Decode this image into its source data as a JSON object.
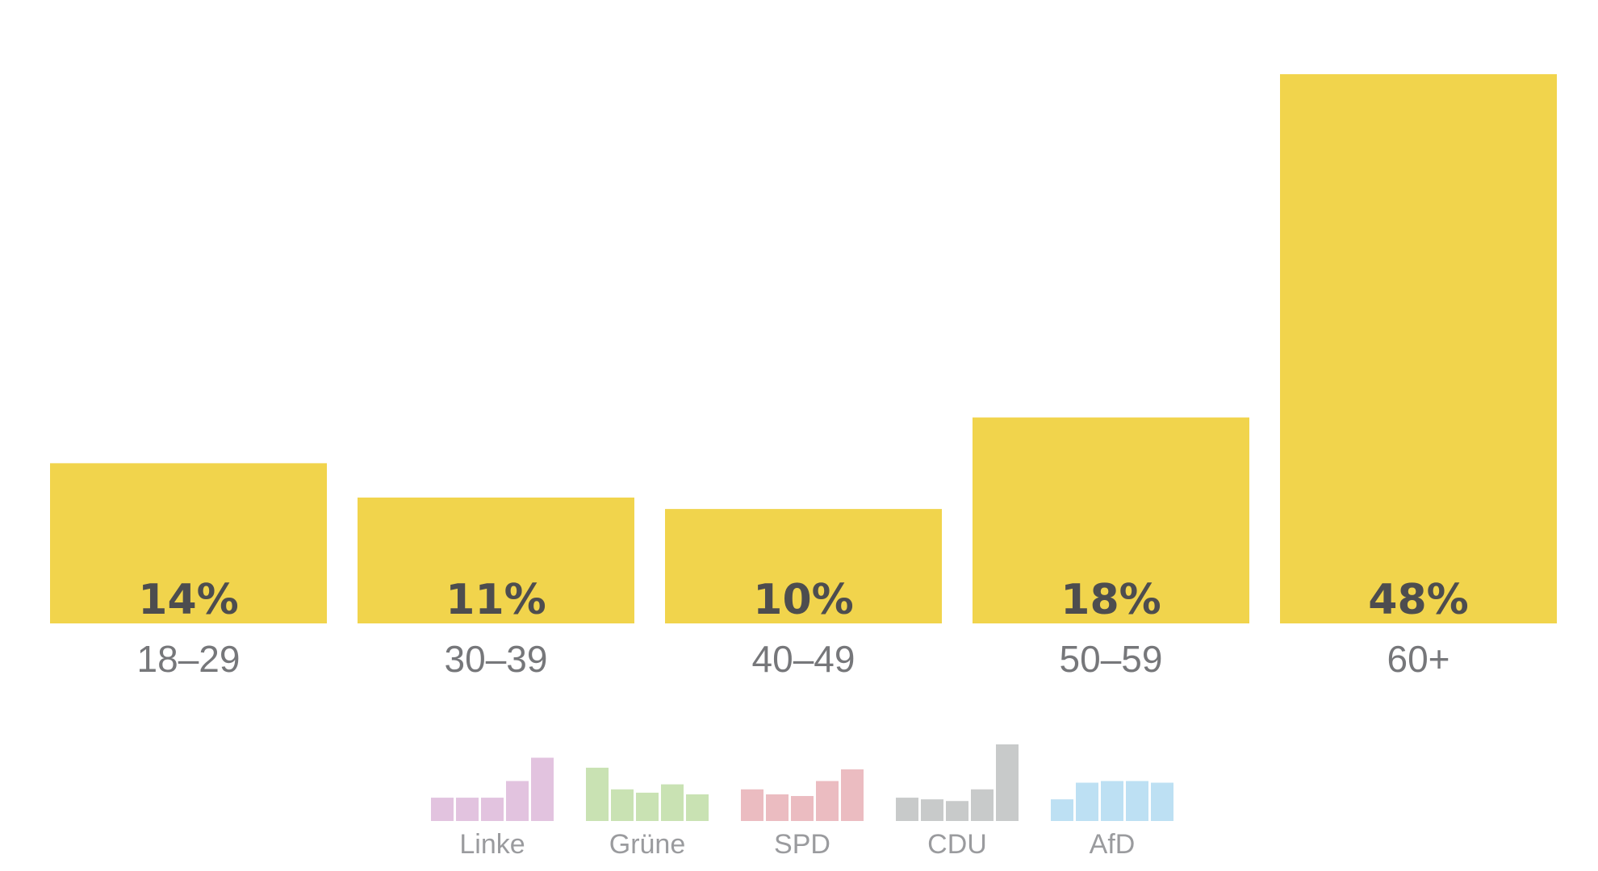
{
  "chart_data": {
    "type": "bar",
    "categories": [
      "18–29",
      "30–39",
      "40–49",
      "50–59",
      "60+"
    ],
    "values": [
      14,
      11,
      10,
      18,
      48
    ],
    "value_labels": [
      "14%",
      "11%",
      "10%",
      "18%",
      "48%"
    ],
    "ylim": [
      0,
      48
    ],
    "grid": false,
    "bar_color": "#f1d44c",
    "legend": [
      {
        "name": "Linke",
        "color": "#e2c3df",
        "values": [
          14,
          14,
          14,
          24,
          38
        ]
      },
      {
        "name": "Grüne",
        "color": "#c9e2b3",
        "values": [
          32,
          19,
          17,
          22,
          16
        ]
      },
      {
        "name": "SPD",
        "color": "#ebbcc1",
        "values": [
          19,
          16,
          15,
          24,
          31
        ]
      },
      {
        "name": "CDU",
        "color": "#c8caca",
        "values": [
          14,
          13,
          12,
          19,
          46
        ]
      },
      {
        "name": "AfD",
        "color": "#bde0f3",
        "values": [
          13,
          23,
          24,
          24,
          23
        ]
      }
    ]
  }
}
